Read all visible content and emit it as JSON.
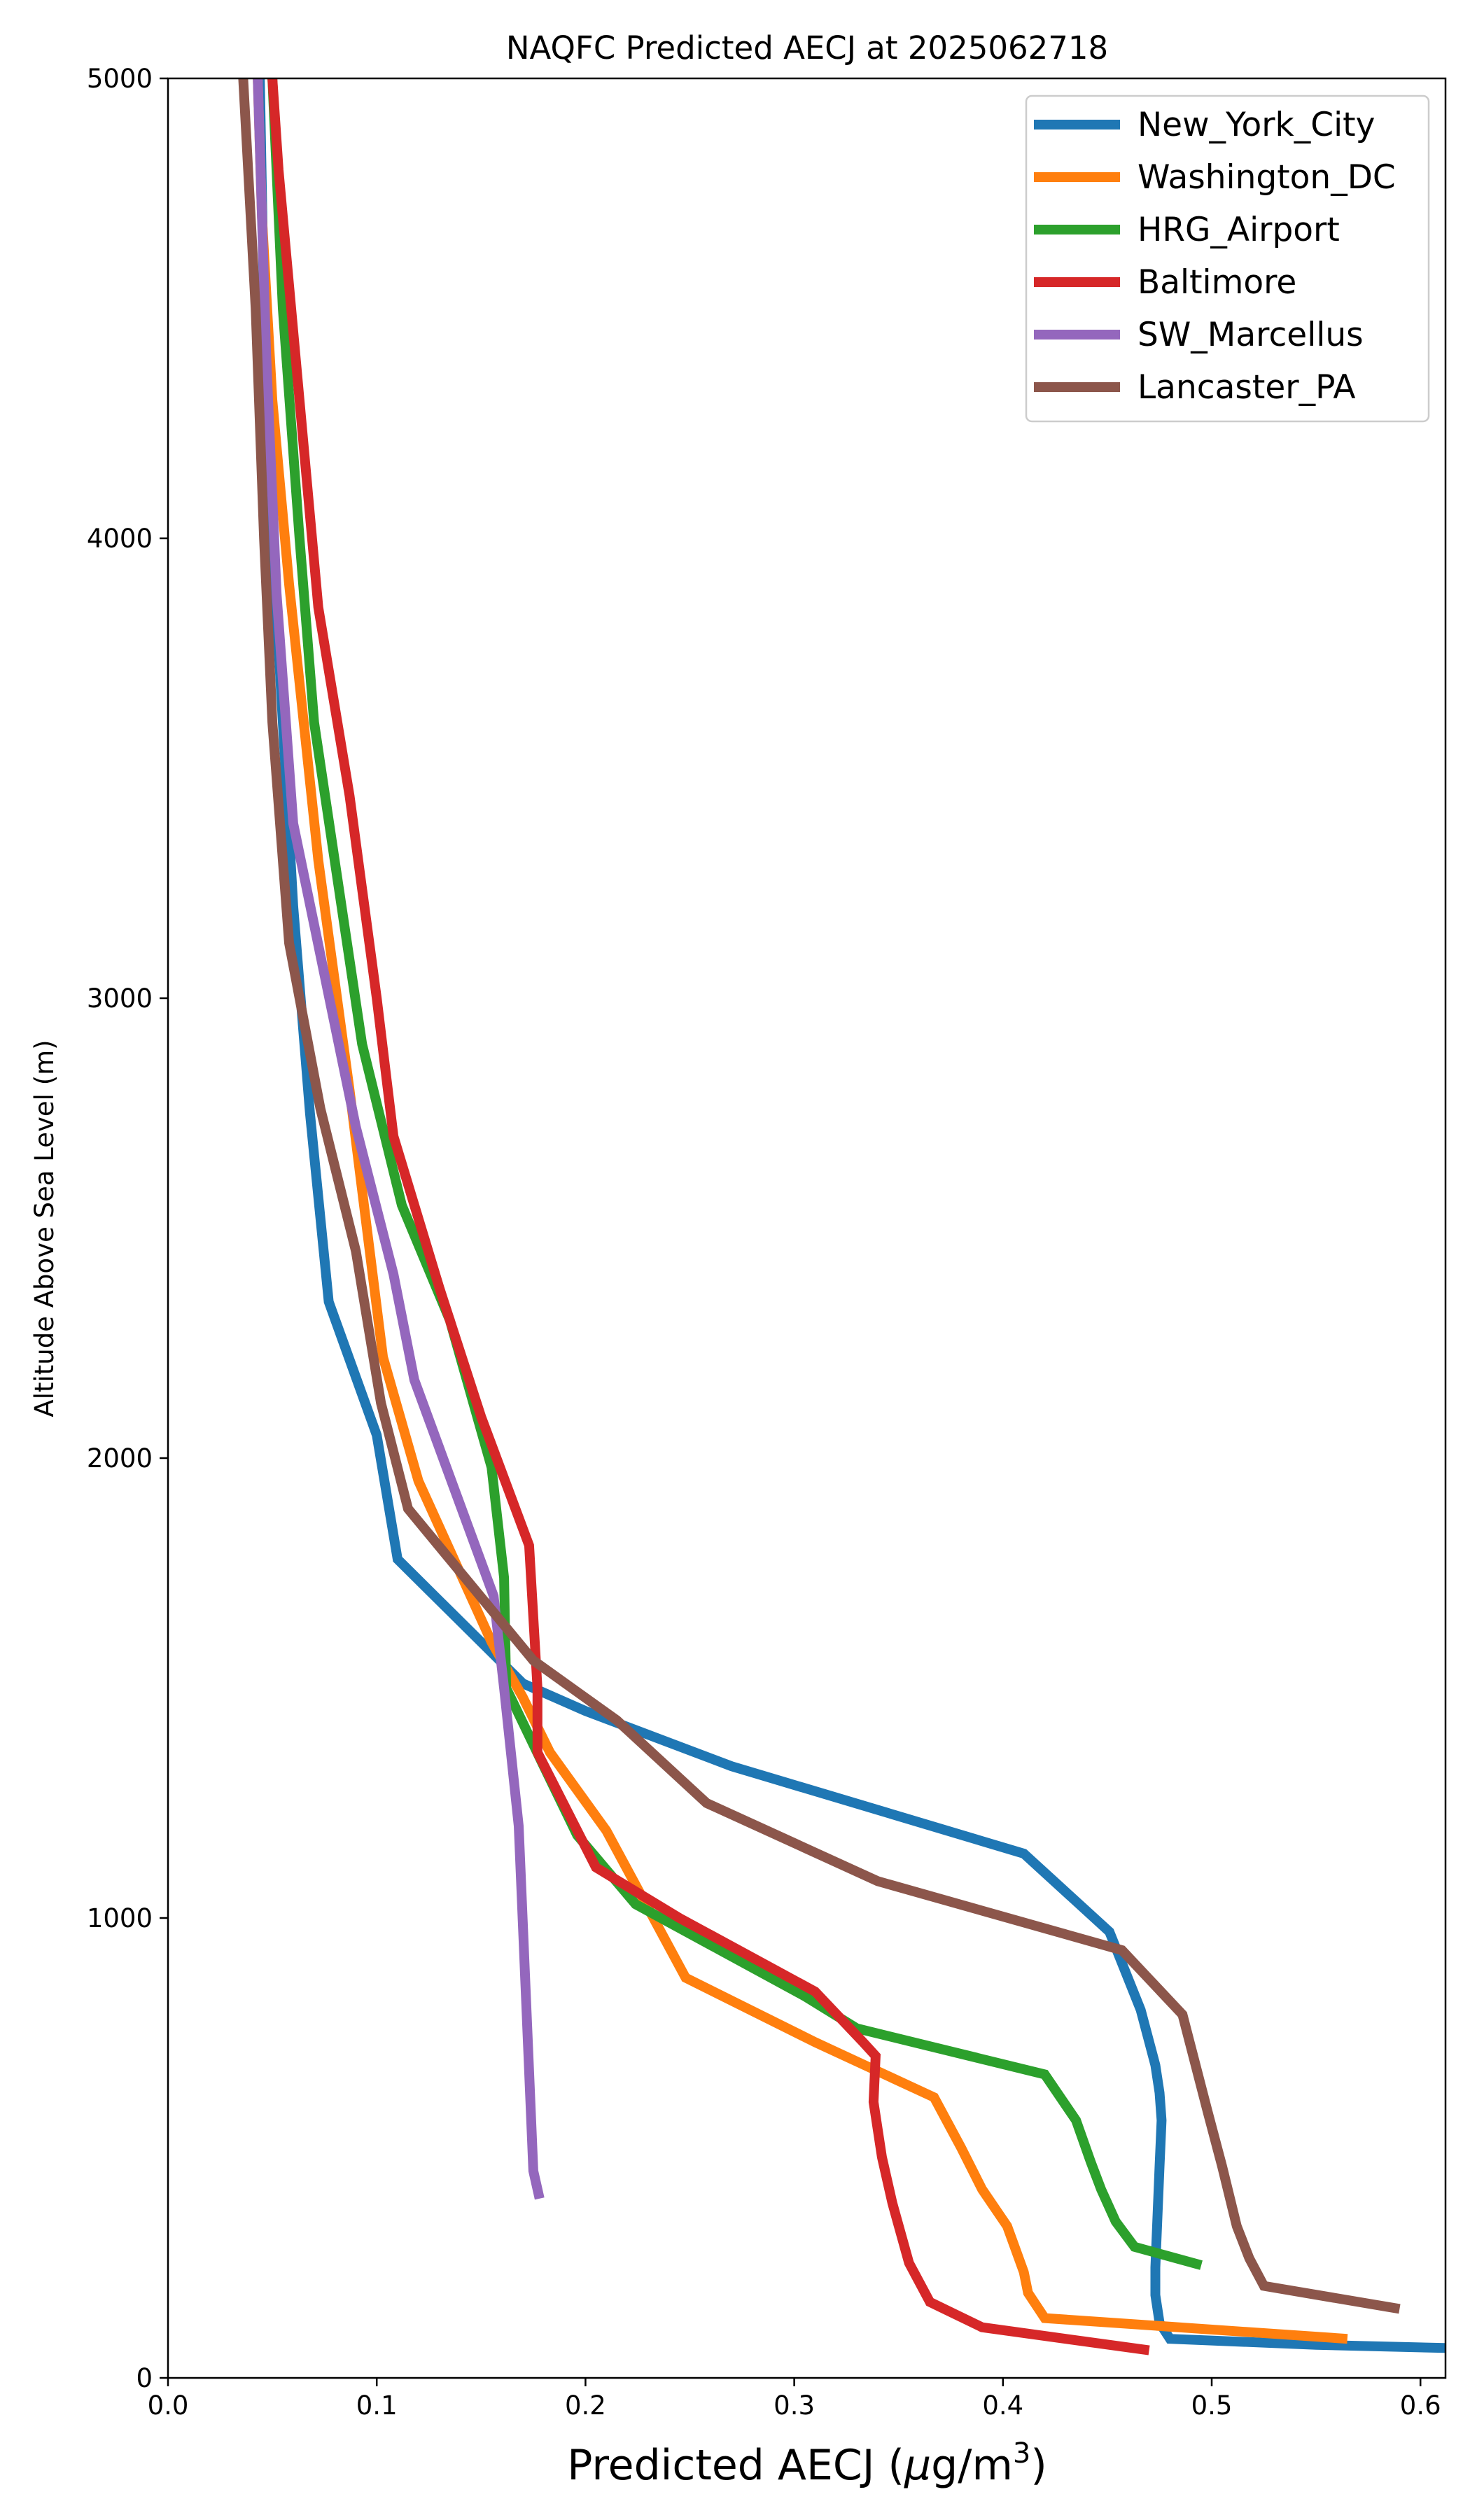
{
  "chart_data": {
    "type": "line",
    "title": "NAQFC Predicted AECJ at 2025062718",
    "xlabel": {
      "prefix": "Predicted AECJ (",
      "mu": "μ",
      "mid": "g/m",
      "sup": "3",
      "suffix": ")"
    },
    "ylabel": "Altitude Above Sea Level (m)",
    "xlim": [
      0.0,
      0.612
    ],
    "ylim": [
      0,
      5000
    ],
    "xticks": [
      0.0,
      0.1,
      0.2,
      0.3,
      0.4,
      0.5,
      0.6
    ],
    "xtick_labels": [
      "0.0",
      "0.1",
      "0.2",
      "0.3",
      "0.4",
      "0.5",
      "0.6"
    ],
    "yticks": [
      0,
      1000,
      2000,
      3000,
      4000,
      5000
    ],
    "ytick_labels": [
      "0",
      "1000",
      "2000",
      "3000",
      "4000",
      "5000"
    ],
    "grid": false,
    "legend_position": "top-right",
    "series": [
      {
        "name": "New_York_City",
        "color": "#1f77b4",
        "points": [
          [
            0.612,
            65
          ],
          [
            0.55,
            72
          ],
          [
            0.48,
            85
          ],
          [
            0.475,
            120
          ],
          [
            0.473,
            180
          ],
          [
            0.473,
            240
          ],
          [
            0.474,
            350
          ],
          [
            0.475,
            460
          ],
          [
            0.476,
            560
          ],
          [
            0.475,
            620
          ],
          [
            0.473,
            680
          ],
          [
            0.466,
            800
          ],
          [
            0.451,
            970
          ],
          [
            0.41,
            1140
          ],
          [
            0.27,
            1330
          ],
          [
            0.2,
            1450
          ],
          [
            0.17,
            1510
          ],
          [
            0.11,
            1780
          ],
          [
            0.1,
            2050
          ],
          [
            0.077,
            2340
          ],
          [
            0.068,
            2750
          ],
          [
            0.06,
            3200
          ],
          [
            0.055,
            3600
          ],
          [
            0.05,
            4000
          ],
          [
            0.046,
            4500
          ],
          [
            0.044,
            5000
          ]
        ]
      },
      {
        "name": "Washington_DC",
        "color": "#ff7f0e",
        "points": [
          [
            0.565,
            85
          ],
          [
            0.42,
            130
          ],
          [
            0.412,
            185
          ],
          [
            0.41,
            230
          ],
          [
            0.402,
            330
          ],
          [
            0.39,
            410
          ],
          [
            0.38,
            500
          ],
          [
            0.367,
            610
          ],
          [
            0.31,
            730
          ],
          [
            0.248,
            870
          ],
          [
            0.21,
            1190
          ],
          [
            0.183,
            1360
          ],
          [
            0.17,
            1480
          ],
          [
            0.155,
            1600
          ],
          [
            0.12,
            1950
          ],
          [
            0.103,
            2220
          ],
          [
            0.087,
            2800
          ],
          [
            0.072,
            3300
          ],
          [
            0.058,
            3900
          ],
          [
            0.05,
            4300
          ],
          [
            0.045,
            4700
          ],
          [
            0.043,
            5000
          ]
        ]
      },
      {
        "name": "HRG_Airport",
        "color": "#2ca02c",
        "points": [
          [
            0.495,
            245
          ],
          [
            0.463,
            285
          ],
          [
            0.454,
            340
          ],
          [
            0.447,
            410
          ],
          [
            0.442,
            470
          ],
          [
            0.435,
            560
          ],
          [
            0.42,
            660
          ],
          [
            0.33,
            760
          ],
          [
            0.305,
            830
          ],
          [
            0.224,
            1030
          ],
          [
            0.196,
            1180
          ],
          [
            0.18,
            1330
          ],
          [
            0.162,
            1500
          ],
          [
            0.161,
            1740
          ],
          [
            0.155,
            1980
          ],
          [
            0.135,
            2300
          ],
          [
            0.112,
            2550
          ],
          [
            0.093,
            2900
          ],
          [
            0.07,
            3600
          ],
          [
            0.063,
            4000
          ],
          [
            0.055,
            4500
          ],
          [
            0.05,
            5000
          ]
        ]
      },
      {
        "name": "Baltimore",
        "color": "#d62728",
        "points": [
          [
            0.47,
            60
          ],
          [
            0.39,
            110
          ],
          [
            0.365,
            165
          ],
          [
            0.355,
            250
          ],
          [
            0.347,
            380
          ],
          [
            0.342,
            480
          ],
          [
            0.338,
            600
          ],
          [
            0.339,
            700
          ],
          [
            0.333,
            730
          ],
          [
            0.31,
            840
          ],
          [
            0.245,
            1000
          ],
          [
            0.205,
            1110
          ],
          [
            0.177,
            1360
          ],
          [
            0.177,
            1500
          ],
          [
            0.173,
            1810
          ],
          [
            0.15,
            2090
          ],
          [
            0.13,
            2370
          ],
          [
            0.108,
            2700
          ],
          [
            0.1,
            3000
          ],
          [
            0.087,
            3440
          ],
          [
            0.072,
            3850
          ],
          [
            0.063,
            4300
          ],
          [
            0.053,
            4800
          ],
          [
            0.05,
            5000
          ]
        ]
      },
      {
        "name": "SW_Marcellus",
        "color": "#9467bd",
        "points": [
          [
            0.178,
            390
          ],
          [
            0.175,
            450
          ],
          [
            0.168,
            1200
          ],
          [
            0.161,
            1500
          ],
          [
            0.156,
            1700
          ],
          [
            0.118,
            2170
          ],
          [
            0.108,
            2400
          ],
          [
            0.09,
            2720
          ],
          [
            0.06,
            3380
          ],
          [
            0.052,
            3880
          ],
          [
            0.047,
            4400
          ],
          [
            0.043,
            5000
          ]
        ]
      },
      {
        "name": "Lancaster_PA",
        "color": "#8c564b",
        "points": [
          [
            0.59,
            150
          ],
          [
            0.525,
            200
          ],
          [
            0.518,
            260
          ],
          [
            0.512,
            330
          ],
          [
            0.505,
            460
          ],
          [
            0.498,
            580
          ],
          [
            0.486,
            790
          ],
          [
            0.457,
            930
          ],
          [
            0.34,
            1080
          ],
          [
            0.258,
            1250
          ],
          [
            0.215,
            1430
          ],
          [
            0.175,
            1560
          ],
          [
            0.115,
            1890
          ],
          [
            0.102,
            2120
          ],
          [
            0.09,
            2450
          ],
          [
            0.073,
            2760
          ],
          [
            0.058,
            3120
          ],
          [
            0.05,
            3600
          ],
          [
            0.046,
            4000
          ],
          [
            0.042,
            4500
          ],
          [
            0.036,
            5000
          ]
        ]
      }
    ]
  }
}
